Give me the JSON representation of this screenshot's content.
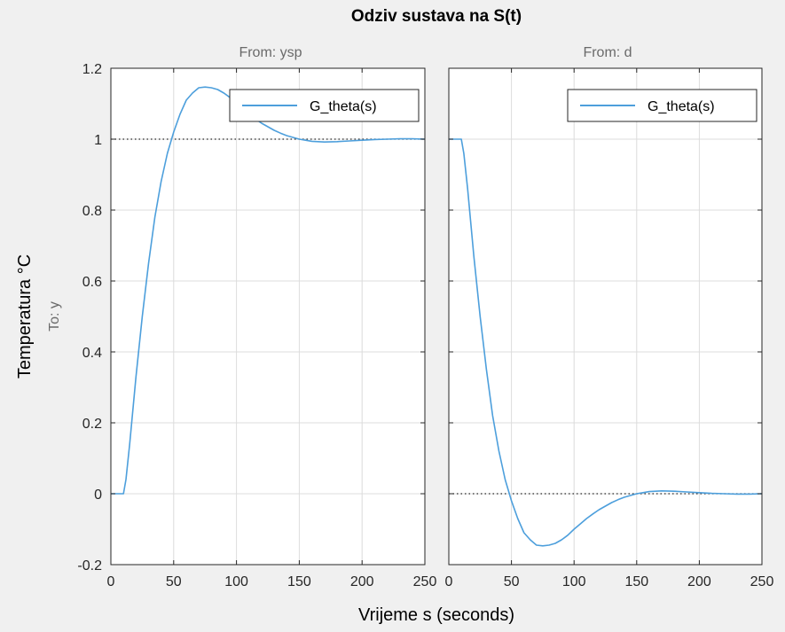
{
  "chart_data": {
    "type": "line",
    "title": "Odziv sustava na S(t)",
    "xlabel": "Vrijeme s (seconds)",
    "ylabel": "Temperatura °C",
    "output_label": "To: y",
    "colors": {
      "series": "#4d9fdc",
      "reference": "#262626",
      "grid": "#dcdcdc",
      "axes": "#262626",
      "background": "#ffffff",
      "figure": "#f0f0f0"
    },
    "ylim": [
      -0.2,
      1.2
    ],
    "yticks": [
      "1.2",
      "1",
      "0.8",
      "0.6",
      "0.4",
      "0.2",
      "0",
      "-0.2"
    ],
    "ytick_values": [
      1.2,
      1,
      0.8,
      0.6,
      0.4,
      0.2,
      0,
      -0.2
    ],
    "grid": true,
    "legend_placement": "top-right",
    "panels": [
      {
        "subtitle": "From: ysp",
        "xlim": [
          0,
          250
        ],
        "xticks": [
          "0",
          "50",
          "100",
          "150",
          "200",
          "250"
        ],
        "xtick_values": [
          0,
          50,
          100,
          150,
          200,
          250
        ],
        "reference_line": 1,
        "series": [
          {
            "name": "G_theta(s)",
            "x": [
              0,
              10,
              12,
              15,
              20,
              25,
              30,
              35,
              40,
              45,
              50,
              55,
              60,
              65,
              70,
              75,
              80,
              85,
              90,
              95,
              100,
              105,
              110,
              115,
              120,
              125,
              130,
              135,
              140,
              145,
              150,
              155,
              160,
              170,
              180,
              190,
              200,
              210,
              220,
              230,
              240,
              250
            ],
            "y": [
              0,
              0,
              0.04,
              0.14,
              0.33,
              0.5,
              0.65,
              0.78,
              0.88,
              0.96,
              1.02,
              1.07,
              1.11,
              1.13,
              1.145,
              1.147,
              1.145,
              1.14,
              1.13,
              1.117,
              1.1,
              1.085,
              1.07,
              1.057,
              1.045,
              1.035,
              1.025,
              1.017,
              1.01,
              1.005,
              1.0,
              0.997,
              0.994,
              0.992,
              0.993,
              0.995,
              0.997,
              0.999,
              1.0,
              1.001,
              1.001,
              1.0
            ]
          }
        ],
        "legend": [
          "G_theta(s)"
        ]
      },
      {
        "subtitle": "From: d",
        "xlim": [
          0,
          250
        ],
        "xticks": [
          "0",
          "50",
          "100",
          "150",
          "200",
          "250"
        ],
        "xtick_values": [
          0,
          50,
          100,
          150,
          200,
          250
        ],
        "reference_line": 0,
        "series": [
          {
            "name": "G_theta(s)",
            "x": [
              0,
              10,
              12,
              15,
              20,
              25,
              30,
              35,
              40,
              45,
              50,
              55,
              60,
              65,
              70,
              75,
              80,
              85,
              90,
              95,
              100,
              105,
              110,
              115,
              120,
              125,
              130,
              135,
              140,
              145,
              150,
              155,
              160,
              170,
              180,
              190,
              200,
              210,
              220,
              230,
              240,
              250
            ],
            "y": [
              1,
              1,
              0.96,
              0.86,
              0.67,
              0.5,
              0.35,
              0.22,
              0.12,
              0.04,
              -0.02,
              -0.07,
              -0.11,
              -0.13,
              -0.145,
              -0.147,
              -0.145,
              -0.14,
              -0.13,
              -0.117,
              -0.1,
              -0.085,
              -0.07,
              -0.057,
              -0.045,
              -0.035,
              -0.025,
              -0.017,
              -0.01,
              -0.005,
              0.0,
              0.003,
              0.006,
              0.008,
              0.007,
              0.005,
              0.003,
              0.001,
              0.0,
              -0.001,
              -0.001,
              0.0
            ]
          }
        ],
        "legend": [
          "G_theta(s)"
        ]
      }
    ]
  }
}
